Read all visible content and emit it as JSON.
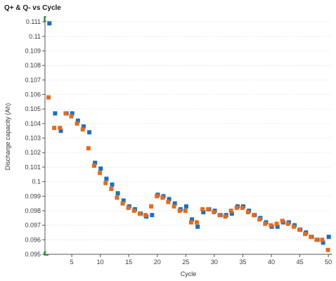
{
  "window": {
    "title": "Q+ & Q- vs Cycle"
  },
  "chart_data": {
    "type": "scatter",
    "title": "Q+ & Q- vs Cycle",
    "xlabel": "Cycle",
    "ylabel": "Discharge capacity (Ah)",
    "xlim": [
      0.3,
      50.6
    ],
    "ylim": [
      0.095,
      0.1112
    ],
    "xticks": [
      5,
      10,
      15,
      20,
      25,
      30,
      35,
      40,
      45,
      50
    ],
    "yticks": [
      0.095,
      0.096,
      0.097,
      0.098,
      0.099,
      0.1,
      0.101,
      0.102,
      0.103,
      0.104,
      0.105,
      0.106,
      0.107,
      0.108,
      0.109,
      0.11,
      0.111
    ],
    "ytick_labels": [
      "0.095",
      "0.096",
      "0.097",
      "0.098",
      "0.099",
      "0.1",
      "0.101",
      "0.102",
      "0.103",
      "0.104",
      "0.105",
      "0.106",
      "0.107",
      "0.108",
      "0.109",
      "0.11",
      "0.111"
    ],
    "grid": "horizontal-dotted",
    "colors": {
      "series_blue": "#1f6fb5",
      "series_orange": "#e06c1f"
    },
    "series": [
      {
        "color": "#1f6fb5",
        "x": [
          1,
          2,
          3,
          4,
          5,
          6,
          7,
          8,
          9,
          10,
          11,
          12,
          13,
          14,
          15,
          16,
          17,
          18,
          19,
          20,
          21,
          22,
          23,
          24,
          25,
          26,
          27,
          28,
          29,
          30,
          31,
          32,
          33,
          34,
          35,
          36,
          37,
          38,
          39,
          40,
          41,
          42,
          43,
          44,
          45,
          46,
          47,
          48,
          49,
          50
        ],
        "y": [
          0.1109,
          0.1047,
          0.1035,
          0.1047,
          0.1047,
          0.1042,
          0.1038,
          0.1034,
          0.1013,
          0.1009,
          0.1002,
          0.0998,
          0.0992,
          0.0987,
          0.0983,
          0.0981,
          0.0978,
          0.0976,
          0.0977,
          0.0991,
          0.099,
          0.0988,
          0.0985,
          0.0981,
          0.0983,
          0.0974,
          0.0969,
          0.0979,
          0.0981,
          0.098,
          0.0977,
          0.0977,
          0.0978,
          0.0983,
          0.0983,
          0.098,
          0.0977,
          0.0975,
          0.0972,
          0.0969,
          0.0969,
          0.0972,
          0.0972,
          0.097,
          0.0967,
          0.0965,
          0.0962,
          0.096,
          0.0958,
          0.0962
        ]
      },
      {
        "color": "#e06c1f",
        "x": [
          1,
          2,
          3,
          4,
          5,
          6,
          7,
          8,
          9,
          10,
          11,
          12,
          13,
          14,
          15,
          16,
          17,
          18,
          19,
          20,
          21,
          22,
          23,
          24,
          25,
          26,
          27,
          28,
          29,
          30,
          31,
          32,
          33,
          34,
          35,
          36,
          37,
          38,
          39,
          40,
          41,
          42,
          43,
          44,
          45,
          46,
          47,
          48,
          49,
          50
        ],
        "y": [
          0.1058,
          0.1037,
          0.1037,
          0.1047,
          0.1045,
          0.104,
          0.1036,
          0.1023,
          0.1011,
          0.1006,
          0.0999,
          0.0995,
          0.0989,
          0.0985,
          0.0982,
          0.098,
          0.0978,
          0.0977,
          0.0983,
          0.099,
          0.0989,
          0.0986,
          0.0983,
          0.098,
          0.098,
          0.0972,
          0.0972,
          0.0981,
          0.0981,
          0.0979,
          0.0977,
          0.0976,
          0.098,
          0.0982,
          0.0982,
          0.0979,
          0.0977,
          0.0974,
          0.0971,
          0.097,
          0.0971,
          0.0973,
          0.0971,
          0.0969,
          0.0967,
          0.0964,
          0.0962,
          0.096,
          0.096,
          0.0953
        ]
      }
    ]
  }
}
